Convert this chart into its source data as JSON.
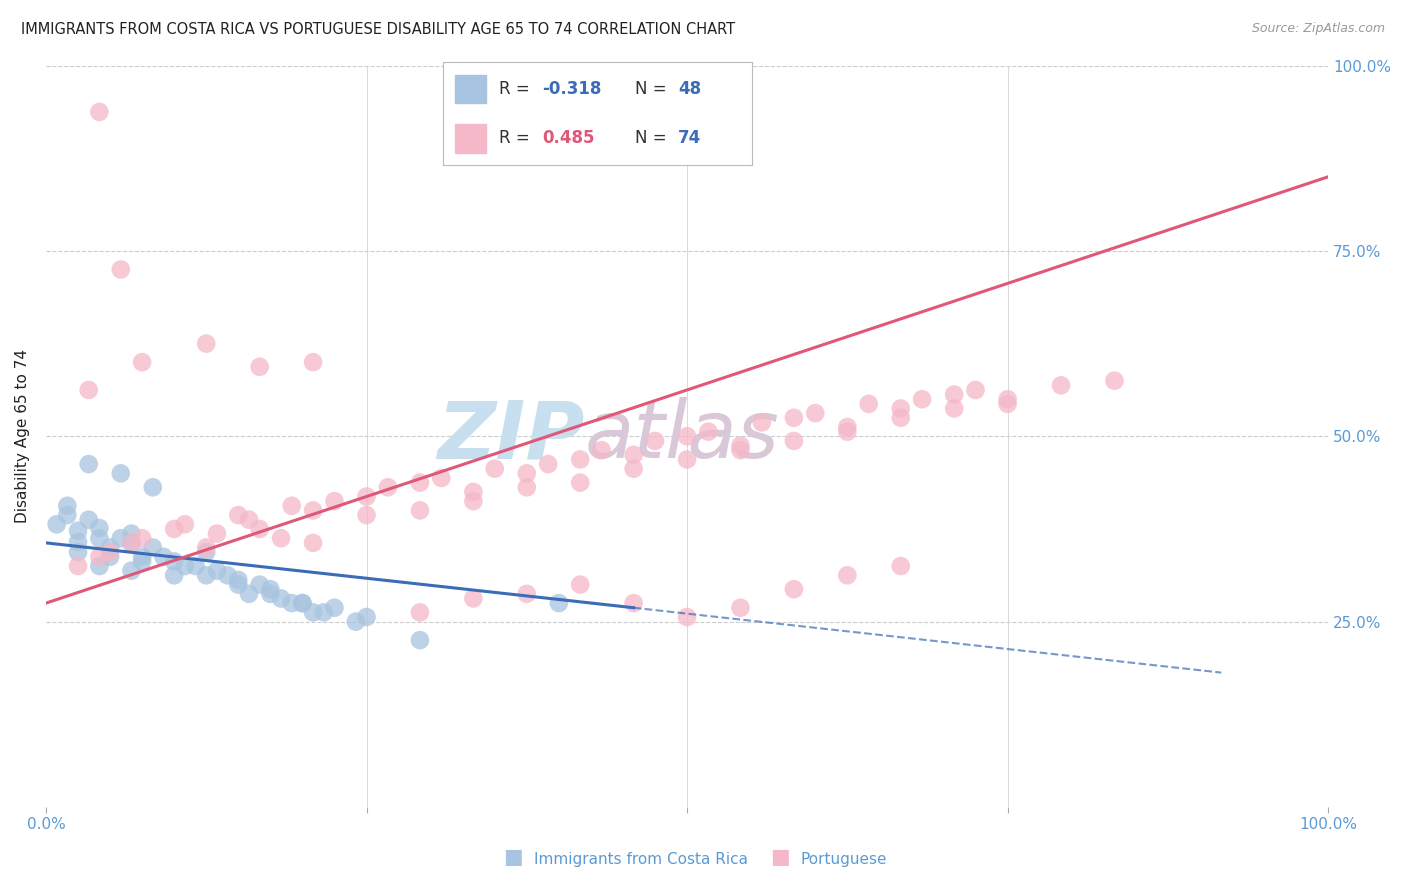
{
  "title": "IMMIGRANTS FROM COSTA RICA VS PORTUGUESE DISABILITY AGE 65 TO 74 CORRELATION CHART",
  "source": "Source: ZipAtlas.com",
  "xlabel_blue": "Immigrants from Costa Rica",
  "xlabel_pink": "Portuguese",
  "ylabel": "Disability Age 65 to 74",
  "blue_R": -0.318,
  "blue_N": 48,
  "pink_R": 0.485,
  "pink_N": 74,
  "blue_color": "#a8c4e0",
  "pink_color": "#f4b8c8",
  "blue_line_color": "#3b6cb7",
  "pink_line_color": "#e05878",
  "watermark_zip": "ZIP",
  "watermark_atlas": "atlas",
  "watermark_color_zip": "#c8dff0",
  "watermark_color_atlas": "#d8c8d8",
  "background_color": "#ffffff",
  "grid_color": "#cccccc",
  "title_color": "#222222",
  "axis_label_color": "#5b9bd5",
  "legend_label_color": "#333333",
  "legend_R_blue_color": "#3b6cb7",
  "legend_N_blue_color": "#3b6cb7",
  "legend_R_pink_color": "#e05878",
  "legend_N_pink_color": "#3b6cb7",
  "blue_scatter_x": [
    0.3,
    0.5,
    0.8,
    0.6,
    0.9,
    1.2,
    1.5,
    1.8,
    2.1,
    2.4,
    0.2,
    0.4,
    0.7,
    1.0,
    1.3,
    1.6,
    1.9,
    2.2,
    2.5,
    0.1,
    0.3,
    0.6,
    0.9,
    1.2,
    1.5,
    1.8,
    2.1,
    2.4,
    2.7,
    3.0,
    0.2,
    0.5,
    0.8,
    1.1,
    1.4,
    1.7,
    2.0,
    2.3,
    2.6,
    2.9,
    0.4,
    0.7,
    1.0,
    4.8,
    0.3,
    0.5,
    0.8,
    3.5
  ],
  "blue_scatter_y": [
    28.6,
    30.1,
    29.5,
    27.0,
    26.5,
    25.0,
    27.5,
    24.0,
    23.5,
    22.0,
    32.5,
    31.0,
    29.0,
    28.0,
    26.0,
    25.5,
    23.0,
    22.5,
    21.0,
    30.5,
    29.8,
    28.0,
    27.0,
    26.5,
    25.0,
    24.5,
    23.0,
    22.0,
    21.5,
    20.5,
    31.5,
    29.0,
    28.5,
    27.0,
    26.0,
    25.0,
    24.0,
    22.0,
    21.0,
    20.0,
    37.0,
    36.0,
    34.5,
    22.0,
    27.5,
    26.0,
    25.5,
    18.0
  ],
  "pink_scatter_x": [
    0.5,
    0.8,
    1.2,
    1.5,
    1.8,
    2.2,
    2.5,
    3.0,
    3.5,
    4.0,
    4.5,
    5.0,
    5.5,
    6.0,
    6.5,
    7.0,
    7.5,
    8.0,
    8.5,
    9.0,
    0.3,
    0.6,
    0.9,
    1.3,
    1.6,
    1.9,
    2.3,
    2.7,
    3.2,
    3.7,
    4.2,
    4.7,
    5.2,
    5.7,
    6.2,
    6.7,
    7.2,
    7.7,
    8.2,
    8.7,
    0.4,
    0.9,
    1.5,
    2.0,
    2.5,
    3.0,
    3.5,
    4.0,
    4.5,
    5.0,
    5.5,
    6.0,
    6.5,
    7.0,
    7.5,
    8.0,
    8.5,
    9.0,
    9.5,
    10.0,
    0.5,
    0.7,
    2.0,
    2.5,
    3.5,
    4.0,
    4.5,
    5.0,
    5.5,
    6.0,
    6.5,
    7.0,
    7.5,
    8.0
  ],
  "pink_scatter_y": [
    27.0,
    28.5,
    30.0,
    28.0,
    31.5,
    29.0,
    32.0,
    33.5,
    35.0,
    34.0,
    36.0,
    37.5,
    38.0,
    40.0,
    39.0,
    42.0,
    41.0,
    43.0,
    44.5,
    43.5,
    26.0,
    27.5,
    29.0,
    30.5,
    29.5,
    31.0,
    32.5,
    33.0,
    34.5,
    35.5,
    36.5,
    37.0,
    38.5,
    39.5,
    40.5,
    41.5,
    42.5,
    43.5,
    44.0,
    45.0,
    45.0,
    48.0,
    50.0,
    30.0,
    28.5,
    31.5,
    32.0,
    33.0,
    34.5,
    35.0,
    36.5,
    37.5,
    38.5,
    39.5,
    40.5,
    42.0,
    43.0,
    44.0,
    45.5,
    46.0,
    75.0,
    58.0,
    47.5,
    48.0,
    21.0,
    22.5,
    23.0,
    24.0,
    22.0,
    20.5,
    21.5,
    23.5,
    25.0,
    26.0
  ],
  "x_max_data": 12.0,
  "y_max_data": 80.0,
  "blue_line_x0": 0.0,
  "blue_line_y0": 28.5,
  "blue_line_x1": 5.5,
  "blue_line_y1": 21.5,
  "blue_line_dash_x1": 11.0,
  "blue_line_dash_y1": 14.5,
  "pink_line_x0": 0.0,
  "pink_line_y0": 22.0,
  "pink_line_x1": 12.0,
  "pink_line_y1": 68.0,
  "x_tick_positions": [
    0,
    25,
    50,
    75,
    100
  ],
  "x_tick_labels": [
    "0.0%",
    "",
    "",
    "",
    "100.0%"
  ],
  "y_tick_right_positions": [
    0,
    25,
    50,
    75,
    100
  ],
  "y_tick_right_labels": [
    "",
    "25.0%",
    "50.0%",
    "75.0%",
    "100.0%"
  ]
}
